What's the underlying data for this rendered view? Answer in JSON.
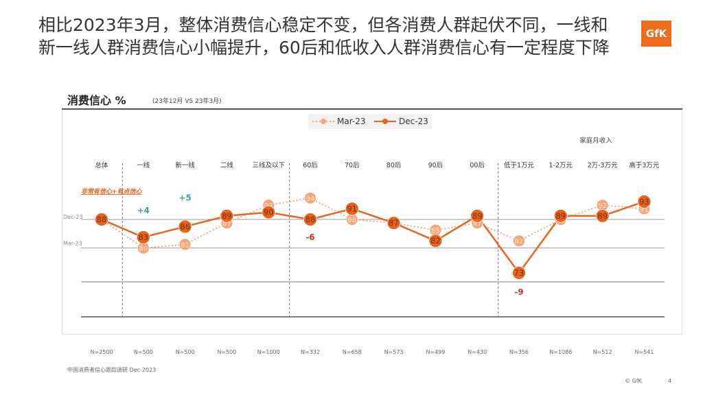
{
  "slide": {
    "title": "相比2023年3月，整体消费信心稳定不变，但各消费人群起伏不同，一线和新一线人群消费信心小幅提升，60后和低收入人群消费信心有一定程度下降",
    "logo": "GfK",
    "source": "中国消费者信心跟踪调研 Dec-2023",
    "copyright": "© GfK",
    "page_number": "4"
  },
  "chart_data": {
    "type": "line",
    "title": "消费信心 %",
    "subtitle": "(23年12月 VS 23年3月)",
    "group_label": "家庭月收入",
    "band_label": "非常有信心+有点信心",
    "ref_lines": [
      "Dec-23",
      "Mar-23"
    ],
    "categories": [
      "总体",
      "一线",
      "新一线",
      "二线",
      "三线及以下",
      "60后",
      "70后",
      "80后",
      "90后",
      "00后",
      "低于1万元",
      "1-2万元",
      "2万-3万元",
      "高于3万元"
    ],
    "sample_sizes": [
      "N=2500",
      "N=500",
      "N=500",
      "N=500",
      "N=1000",
      "N=332",
      "N=658",
      "N=573",
      "N=499",
      "N=430",
      "N=356",
      "N=1086",
      "N=512",
      "N=541"
    ],
    "series": [
      {
        "name": "Mar-23",
        "color": "#f4a67a",
        "style": "dotted",
        "values": [
          88,
          80,
          81,
          87,
          92,
          94,
          88,
          87,
          85,
          87,
          82,
          88,
          92,
          91
        ]
      },
      {
        "name": "Dec-23",
        "color": "#e8641e",
        "style": "solid",
        "values": [
          88,
          83,
          86,
          89,
          90,
          88,
          91,
          87,
          82,
          89,
          73,
          89,
          89,
          93
        ]
      }
    ],
    "annotations": [
      {
        "category": "一线",
        "text": "+4",
        "color": "#3aa8a0"
      },
      {
        "category": "新一线",
        "text": "+5",
        "color": "#3aa8a0"
      },
      {
        "category": "60后",
        "text": "-6",
        "color": "#c0392b"
      },
      {
        "category": "低于1万元",
        "text": "-9",
        "color": "#c0392b"
      }
    ],
    "legend_position": "top-center"
  }
}
